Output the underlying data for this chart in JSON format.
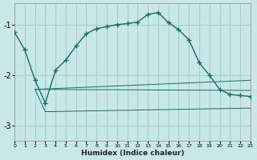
{
  "xlabel": "Humidex (Indice chaleur)",
  "bg_color": "#c8e8e8",
  "grid_color": "#a8d0d0",
  "line_color": "#1a6b6b",
  "xlim": [
    0,
    23
  ],
  "ylim": [
    -3.3,
    -0.58
  ],
  "yticks": [
    -3,
    -2,
    -1
  ],
  "xticks": [
    0,
    1,
    2,
    3,
    4,
    5,
    6,
    7,
    8,
    9,
    10,
    11,
    12,
    13,
    14,
    15,
    16,
    17,
    18,
    19,
    20,
    21,
    22,
    23
  ],
  "s1x": [
    0,
    1,
    2,
    3,
    4,
    5,
    6,
    7,
    8,
    9,
    10,
    11,
    12,
    13,
    14,
    15,
    16,
    17,
    18,
    19,
    20,
    21,
    22,
    23
  ],
  "s1y": [
    -1.15,
    -1.5,
    -2.1,
    -2.55,
    -1.9,
    -1.7,
    -1.42,
    -1.18,
    -1.08,
    -1.04,
    -1.0,
    -0.98,
    -0.95,
    -0.8,
    -0.76,
    -0.96,
    -1.1,
    -1.3,
    -1.75,
    -2.0,
    -2.28,
    -2.38,
    -2.4,
    -2.42
  ],
  "s2x": [
    2,
    23
  ],
  "s2y": [
    -2.28,
    -2.1
  ],
  "s3x": [
    2,
    23
  ],
  "s3y": [
    -2.28,
    -2.3
  ],
  "s4x": [
    2,
    3,
    23
  ],
  "s4y": [
    -2.28,
    -2.72,
    -2.65
  ]
}
